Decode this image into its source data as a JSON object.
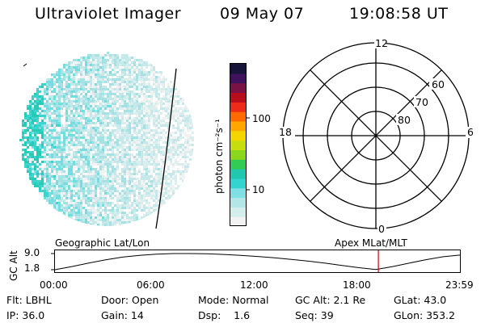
{
  "header": {
    "instrument": "Ultraviolet Imager",
    "date": "09 May 07",
    "time": "19:08:58 UT"
  },
  "colorbar": {
    "unit_label": "photon cm⁻²s⁻¹",
    "ticks": [
      "100",
      "10"
    ]
  },
  "polar": {
    "mlt_labels": [
      "12",
      "18",
      "6",
      "0"
    ],
    "lat_labels": [
      "60",
      "70",
      "80"
    ]
  },
  "timeline": {
    "left_label": "Geographic Lat/Lon",
    "right_label": "Apex MLat/MLT",
    "y_axis_label": "GC Alt",
    "y_ticks": [
      "9.0",
      "1.8"
    ],
    "x_ticks": [
      "00:00",
      "06:00",
      "12:00",
      "18:00",
      "23:59"
    ]
  },
  "info": {
    "row1": [
      "Flt: LBHL",
      "Door: Open",
      "Mode: Normal",
      "GC Alt: 2.1 Re",
      "GLat: 43.0"
    ],
    "row2": [
      "IP: 36.0",
      "Gain: 14",
      "Dsp:    1.6",
      "Seq: 39",
      "GLon: 353.2"
    ]
  },
  "chart_data": {
    "type": "line",
    "title": "",
    "xlabel": "",
    "ylabel": "GC Alt",
    "x_hours": [
      0,
      1,
      2,
      3,
      4,
      5,
      6,
      7,
      8,
      9,
      10,
      11,
      12,
      13,
      14,
      15,
      16,
      17,
      18,
      19,
      20,
      21,
      22,
      23,
      23.98
    ],
    "series": [
      {
        "values": [
          1.8,
          3.2,
          4.8,
          6.2,
          7.4,
          8.2,
          8.7,
          9.0,
          9.0,
          8.9,
          8.6,
          8.2,
          7.7,
          7.1,
          6.4,
          5.6,
          4.7,
          3.7,
          2.7,
          1.9,
          3.2,
          4.8,
          6.3,
          7.6,
          8.3
        ]
      }
    ],
    "xlim": [
      0,
      23.98
    ],
    "ylim": [
      1.5,
      9.3
    ],
    "current_time_hours": 19.15
  },
  "colors": {
    "marker_red": "#cc0000",
    "colorbar_scale": [
      "#f2f2f2",
      "#d4eeee",
      "#b3e7e7",
      "#7fdfe3",
      "#33d3cf",
      "#22c7b0",
      "#32cc55",
      "#8ad61c",
      "#c8dd0d",
      "#f5d500",
      "#ffa600",
      "#ff6a00",
      "#ee2a18",
      "#b80d1a",
      "#7a1245",
      "#40115d",
      "#17143a"
    ],
    "aurora_palette": [
      "#f2f2f2",
      "#dbeeee",
      "#c5e8ea",
      "#a4e2e4",
      "#74dde0",
      "#3fd3cf",
      "#27cbb5"
    ]
  }
}
